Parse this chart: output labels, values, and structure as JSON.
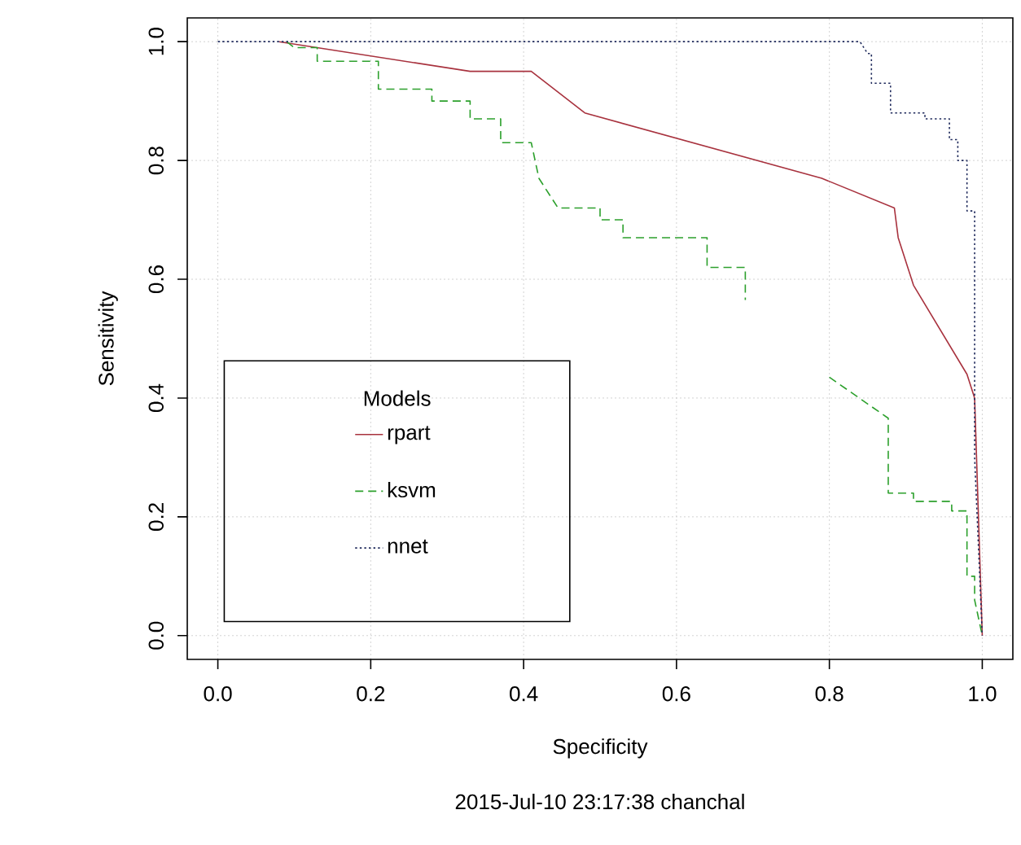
{
  "chart_data": {
    "type": "line",
    "xlabel": "Specificity",
    "ylabel": "Sensitivity",
    "legend_title": "Models",
    "annotations": [
      "2015-Jul-10 23:17:38 chanchal"
    ],
    "xlim": [
      -0.04,
      1.04
    ],
    "ylim": [
      -0.04,
      1.04
    ],
    "xticks": [
      {
        "value": 0,
        "label": "0.0"
      },
      {
        "value": 0.2,
        "label": "0.2"
      },
      {
        "value": 0.4,
        "label": "0.4"
      },
      {
        "value": 0.6,
        "label": "0.6"
      },
      {
        "value": 0.8,
        "label": "0.8"
      },
      {
        "value": 1,
        "label": "1.0"
      }
    ],
    "yticks": [
      {
        "value": 0,
        "label": "0.0"
      },
      {
        "value": 0.2,
        "label": "0.2"
      },
      {
        "value": 0.4,
        "label": "0.4"
      },
      {
        "value": 0.6,
        "label": "0.6"
      },
      {
        "value": 0.8,
        "label": "0.8"
      },
      {
        "value": 1,
        "label": "1.0"
      }
    ],
    "grid": true,
    "legend": "bottom left",
    "series": [
      {
        "name": "rpart",
        "color": "#a8323e",
        "line_style": "solid",
        "x": [
          0.08,
          0.33,
          0.41,
          0.48,
          0.79,
          0.885,
          0.89,
          0.91,
          0.98,
          0.99,
          1.0
        ],
        "values": [
          1.0,
          0.95,
          0.95,
          0.88,
          0.77,
          0.72,
          0.67,
          0.59,
          0.44,
          0.4,
          0.0
        ]
      },
      {
        "name": "ksvm",
        "color": "#2ca02c",
        "line_style": "dashed",
        "x": [
          0.09,
          0.1,
          0.13,
          0.13,
          0.21,
          0.21,
          0.28,
          0.28,
          0.33,
          0.33,
          0.37,
          0.37,
          0.41,
          0.42,
          0.445,
          0.5,
          0.5,
          0.53,
          0.53,
          0.64,
          0.64,
          0.69,
          0.69,
          0.75,
          0.8,
          0.877,
          0.877,
          0.91,
          0.91,
          0.96,
          0.96,
          0.98,
          0.98,
          0.99,
          0.99,
          1.0
        ],
        "values": [
          1.0,
          0.99,
          0.99,
          0.967,
          0.967,
          0.92,
          0.92,
          0.9,
          0.9,
          0.87,
          0.87,
          0.83,
          0.83,
          0.77,
          0.72,
          0.72,
          0.7,
          0.7,
          0.67,
          0.67,
          0.62,
          0.62,
          0.565,
          null,
          0.435,
          0.366,
          0.24,
          0.24,
          0.226,
          0.226,
          0.21,
          0.21,
          0.1,
          0.1,
          0.06,
          0.0
        ]
      },
      {
        "name": "nnet",
        "color": "#1f2a5c",
        "line_style": "dotted",
        "x": [
          0.0,
          0.84,
          0.85,
          0.855,
          0.855,
          0.88,
          0.88,
          0.925,
          0.925,
          0.957,
          0.957,
          0.968,
          0.968,
          0.98,
          0.98,
          0.99,
          0.99,
          1.0
        ],
        "values": [
          1.0,
          1.0,
          0.98,
          0.98,
          0.93,
          0.93,
          0.88,
          0.88,
          0.87,
          0.87,
          0.835,
          0.835,
          0.8,
          0.8,
          0.715,
          0.715,
          0.3,
          0.0
        ]
      }
    ]
  }
}
